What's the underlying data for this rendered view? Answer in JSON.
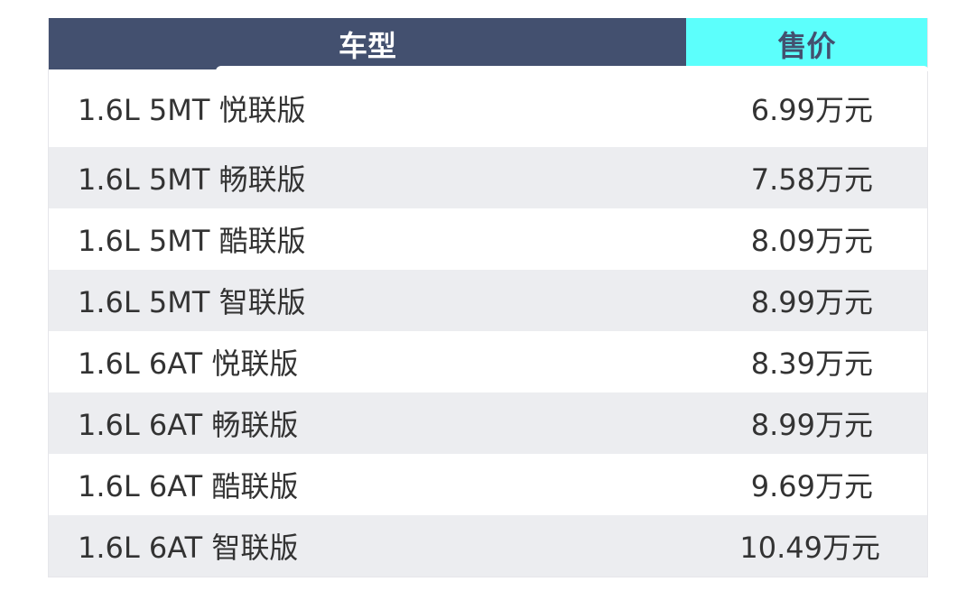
{
  "header": {
    "model": "车型",
    "price": "售价"
  },
  "colors": {
    "header_dark": "#43506f",
    "header_accent": "#5cfffc",
    "row_alt": "#ecedf0"
  },
  "rows": [
    {
      "model": "1.6L 5MT 悦联版",
      "price": "6.99万元"
    },
    {
      "model": "1.6L 5MT 畅联版",
      "price": "7.58万元"
    },
    {
      "model": "1.6L 5MT 酷联版",
      "price": "8.09万元"
    },
    {
      "model": "1.6L 5MT 智联版",
      "price": "8.99万元"
    },
    {
      "model": "1.6L 6AT 悦联版",
      "price": "8.39万元"
    },
    {
      "model": "1.6L 6AT 畅联版",
      "price": "8.99万元"
    },
    {
      "model": "1.6L 6AT 酷联版",
      "price": "9.69万元"
    },
    {
      "model": "1.6L 6AT 智联版",
      "price": "10.49万元"
    }
  ]
}
